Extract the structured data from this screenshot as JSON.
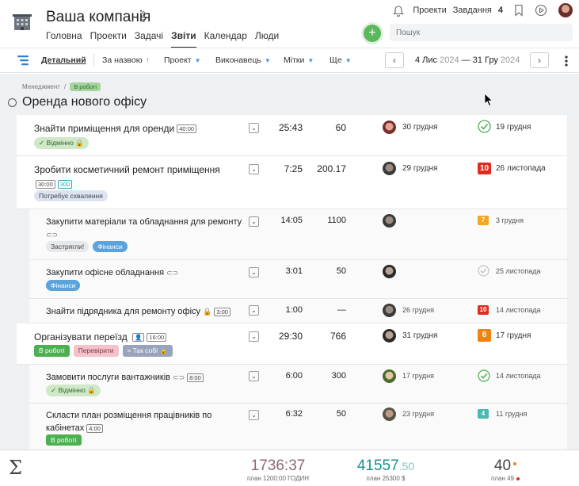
{
  "header": {
    "company": "Ваша компанія",
    "nav": [
      "Головна",
      "Проекти",
      "Задачі",
      "Звіти",
      "Календар",
      "Люди"
    ],
    "active_nav": "Звіти",
    "projects_link": "Проекти",
    "tasks_link": "Завдання",
    "tasks_count": "4",
    "search_placeholder": "Пошук",
    "add_label": "+"
  },
  "toolbar": {
    "detailed": "Детальний",
    "sort_by_name": "За назвою",
    "sort_arrow": "↑",
    "filter_project": "Проект",
    "filter_assignee": "Виконавець",
    "filter_tags": "Мітки",
    "filter_more": "Ще",
    "caret": "▼",
    "prev": "‹",
    "next": "›",
    "date_start_day": "4 Лис",
    "date_start_year": "2024",
    "date_dash": "—",
    "date_end_day": "31 Гру",
    "date_end_year": "2024"
  },
  "breadcrumb": {
    "parent": "Менеджмент",
    "separator": "/",
    "status": "В роботі"
  },
  "project_title": "Оренда нового офісу",
  "tasks": [
    {
      "name": "Знайти приміщення для оренди",
      "estimate": "40:00",
      "tags": [
        "✓ Відмінно 🔒"
      ],
      "time": "25:43",
      "value": "60",
      "assign_date": "30 грудня",
      "due": "19 грудня"
    },
    {
      "name": "Зробити косметичний ремонт приміщення",
      "estimate": "30:00",
      "estimate2": "300",
      "tags": [
        "Потребує схвалення"
      ],
      "time": "7:25",
      "value": "200.17",
      "assign_date": "29 грудня",
      "due_badge": "10",
      "due": "26 листопада"
    },
    {
      "name": "Закупити матеріали та обладнання для ремонту",
      "clip": "⊂⊃",
      "tags": [
        "Застрягли!",
        "Фінанси"
      ],
      "time": "14:05",
      "value": "1100",
      "due_badge": "7",
      "due": "3 грудня"
    },
    {
      "name": "Закупити офісне обладнання",
      "clip": "⊂⊃",
      "tags": [
        "Фінанси"
      ],
      "time": "3:01",
      "value": "50",
      "due": "25 листопада"
    },
    {
      "name": "Знайти підрядника для ремонту офісу",
      "lock": "🔒",
      "estimate": "3:00",
      "time": "1:00",
      "value": "—",
      "assign_date": "26 грудня",
      "due_badge": "10",
      "due": "14 листопада"
    },
    {
      "name": "Організувати переїзд",
      "person": "👤",
      "estimate": "16:00",
      "tags": [
        "В роботі",
        "Перевірити",
        "≈ Так собі 🔒"
      ],
      "time": "29:30",
      "value": "766",
      "assign_date": "31 грудня",
      "due_badge": "8",
      "due": "17 грудня"
    },
    {
      "name": "Замовити послуги вантажників",
      "clip": "⊂⊃",
      "estimate": "8:00",
      "tags": [
        "✓ Відмінно 🔒"
      ],
      "time": "6:00",
      "value": "300",
      "assign_date": "17 грудня",
      "due": "14 листопада"
    },
    {
      "name_line1": "Скласти план розміщення працівників по",
      "name_line2": "кабінетах",
      "estimate": "4:00",
      "tags": [
        "В роботі"
      ],
      "time": "6:32",
      "value": "50",
      "assign_date": "23 грудня",
      "due_badge": "4",
      "due": "11 грудня"
    }
  ],
  "dropdown_glyph": "⌄",
  "footer": {
    "sigma": "Σ",
    "time_total": "1736:37",
    "time_plan": "план 1200:00 ГОДИН",
    "money_int": "41557",
    "money_dec": ".50",
    "money_plan": "план 25300 $",
    "count": "40",
    "count_plan": "план 49"
  },
  "colors": {
    "green": "#4caf50",
    "red_badge": "#e02b1f",
    "orange_badge": "#f0820f",
    "teal": "#17928d"
  }
}
